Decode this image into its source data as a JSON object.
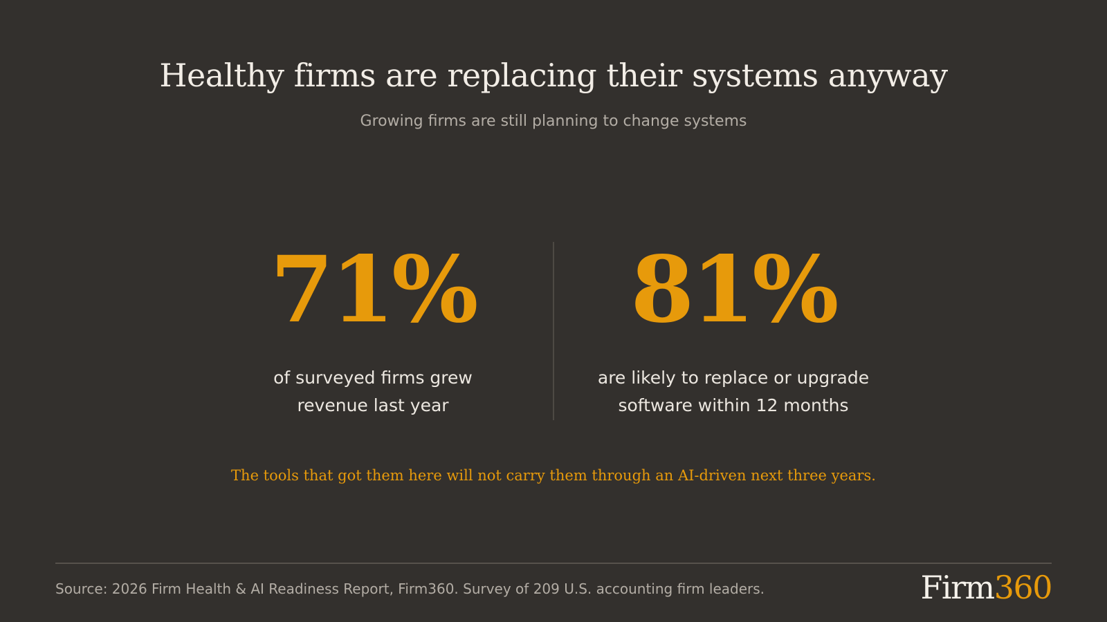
{
  "slide": {
    "title": "Healthy firms are replacing their systems anyway",
    "subtitle": "Growing firms are still planning to change systems",
    "stats": [
      {
        "value": "71%",
        "caption": "of surveyed firms grew\nrevenue last year"
      },
      {
        "value": "81%",
        "caption": "are likely to replace or upgrade\nsoftware within 12 months"
      }
    ],
    "tagline": "The tools that got them here will not carry them through an AI-driven next three years.",
    "source": "Source: 2026 Firm Health & AI Readiness Report, Firm360. Survey of 209 U.S. accounting firm leaders.",
    "logo": {
      "word": "Firm",
      "number": "360"
    }
  },
  "colors": {
    "background": "#33302d",
    "accent": "#e79a0b",
    "text_primary": "#f2ede6",
    "text_secondary": "#b3ada5"
  }
}
